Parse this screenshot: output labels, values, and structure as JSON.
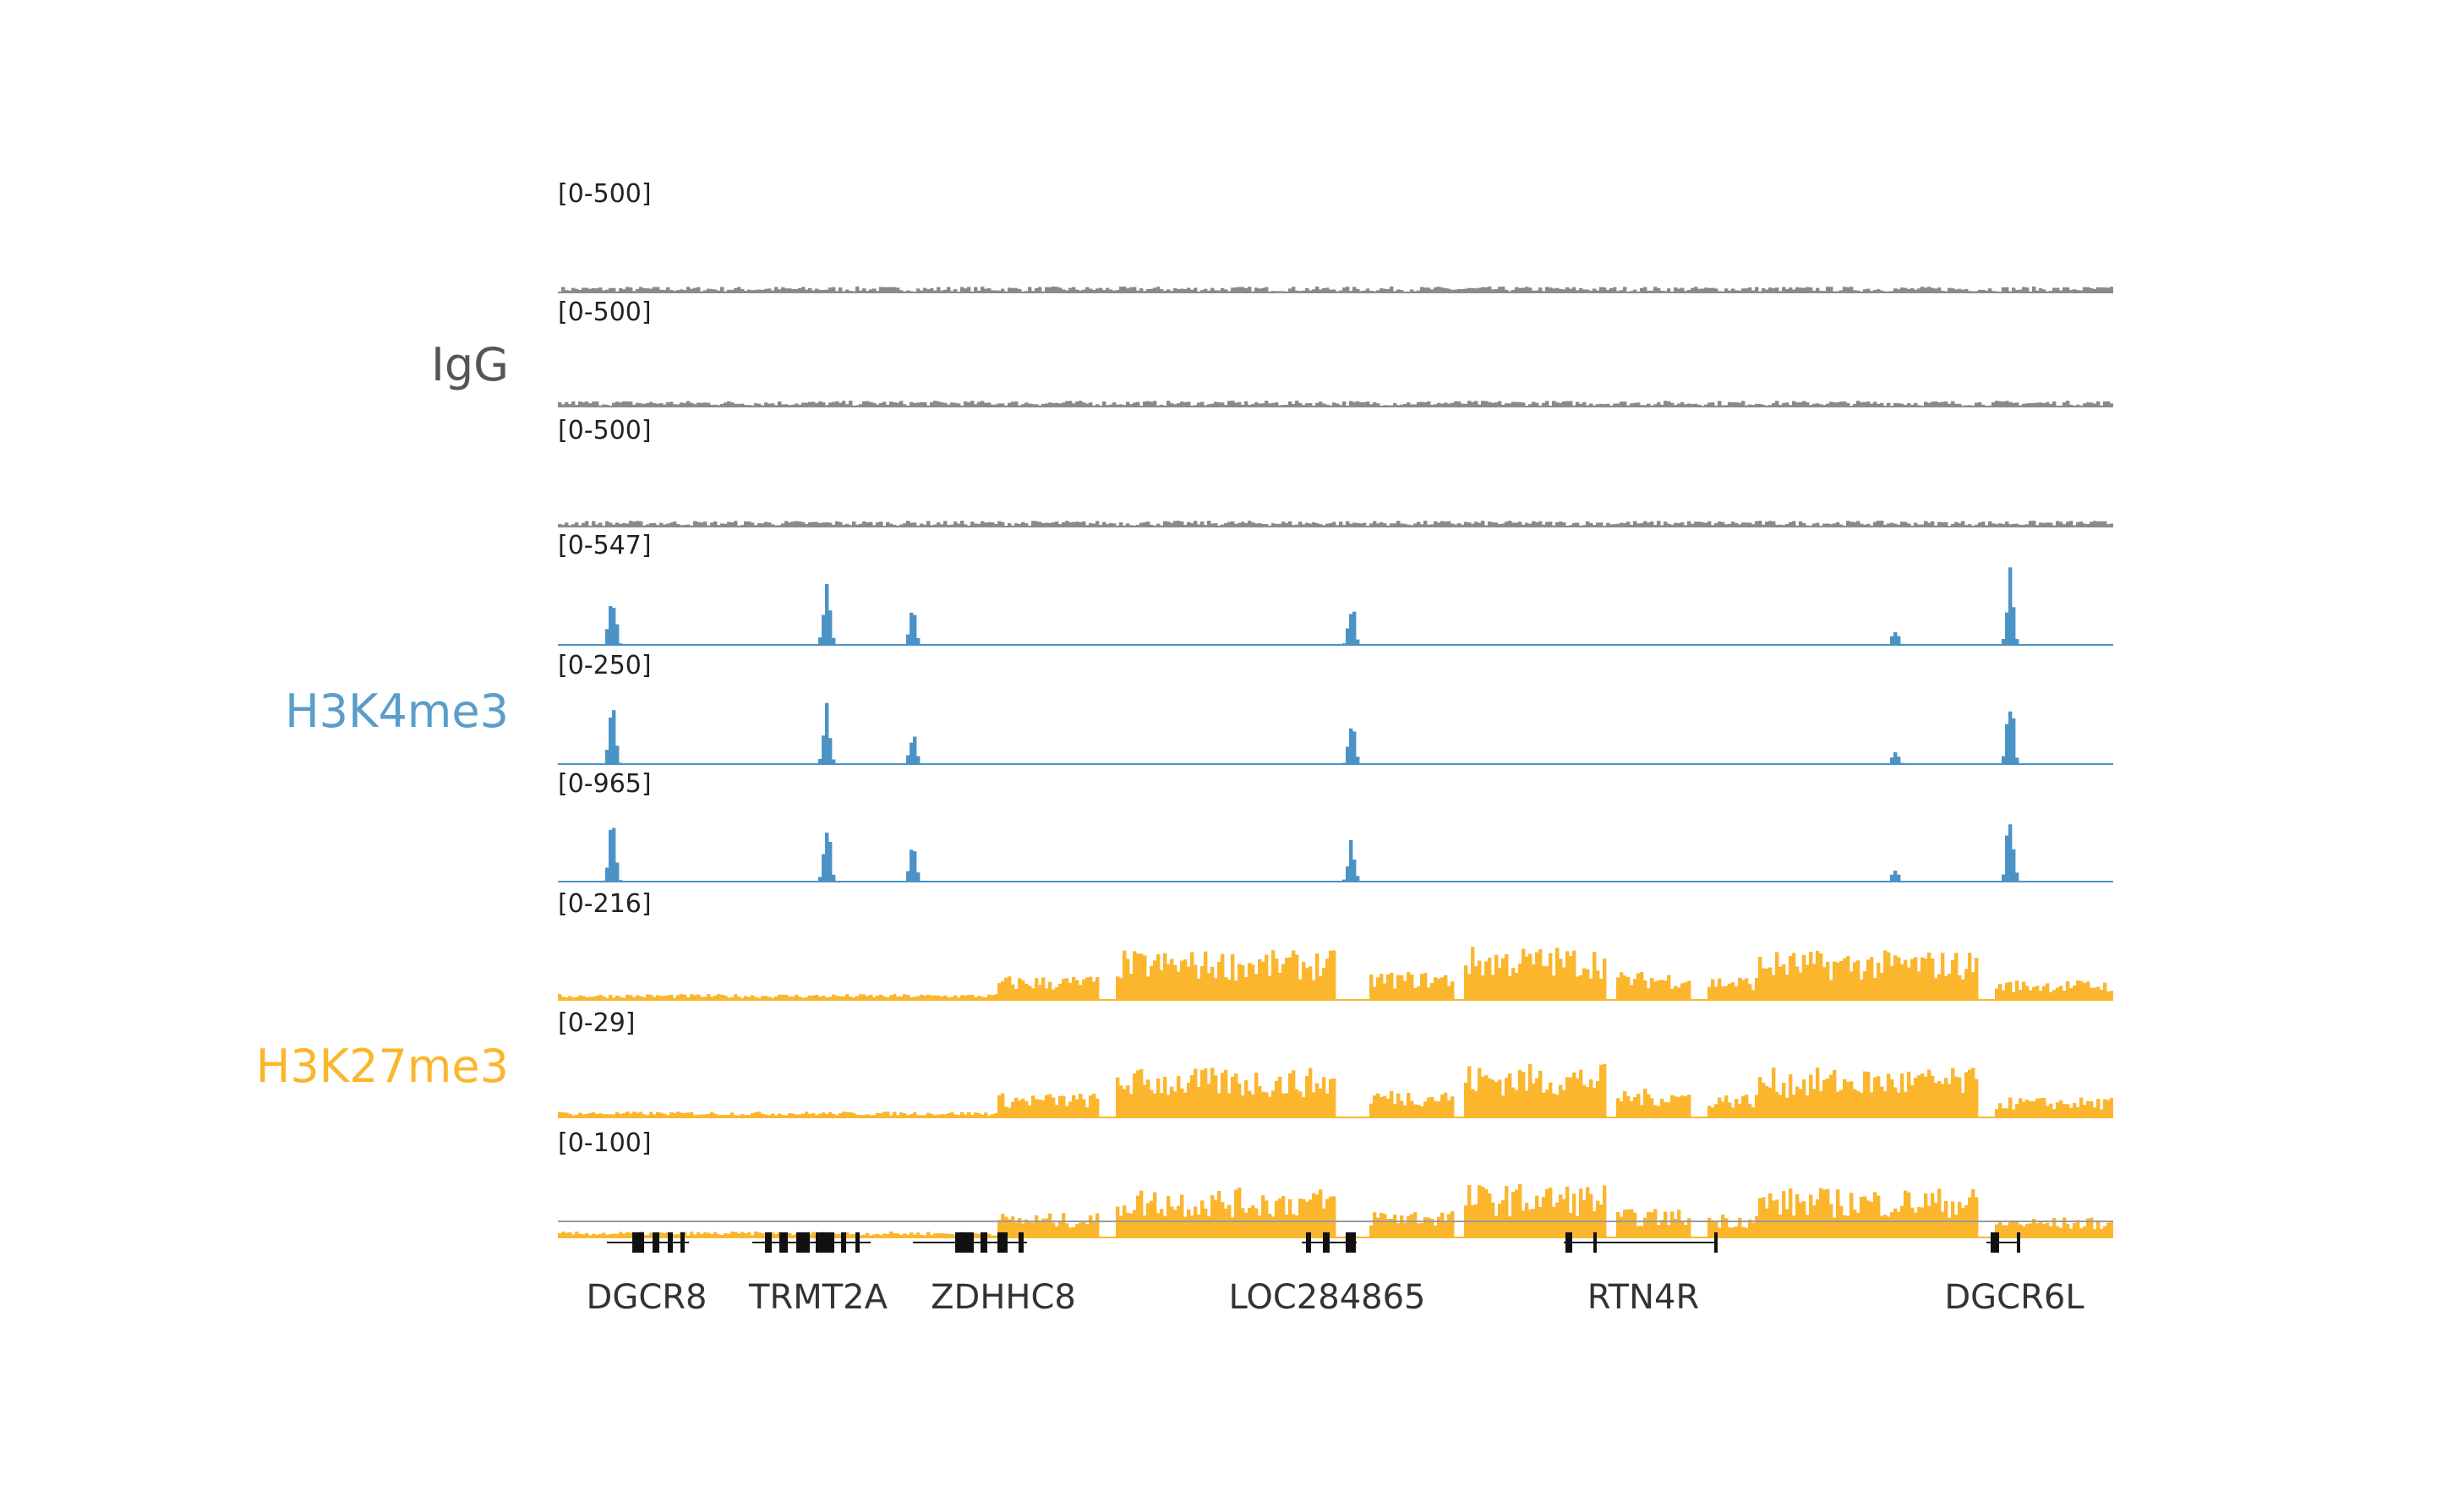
{
  "groups": [
    {
      "label": "IgG",
      "color": "#555555"
    },
    {
      "label": "H3K4me3",
      "color": "#5b9dc9"
    },
    {
      "label": "H3K27me3",
      "color": "#fbb62e"
    }
  ],
  "tracks": [
    {
      "range": "[0-500]",
      "group": 0,
      "color": "#8a8a8a"
    },
    {
      "range": "[0-500]",
      "group": 0,
      "color": "#8a8a8a"
    },
    {
      "range": "[0-500]",
      "group": 0,
      "color": "#8a8a8a"
    },
    {
      "range": "[0-547]",
      "group": 1,
      "color": "#4b93c7"
    },
    {
      "range": "[0-250]",
      "group": 1,
      "color": "#4b93c7"
    },
    {
      "range": "[0-965]",
      "group": 1,
      "color": "#4b93c7"
    },
    {
      "range": "[0-216]",
      "group": 2,
      "color": "#fbb62e"
    },
    {
      "range": "[0-29]",
      "group": 2,
      "color": "#fbb62e"
    },
    {
      "range": "[0-100]",
      "group": 2,
      "color": "#fbb62e"
    }
  ],
  "genes": [
    {
      "name": "DGCR8"
    },
    {
      "name": "TRMT2A"
    },
    {
      "name": "ZDHHC8"
    },
    {
      "name": "LOC284865"
    },
    {
      "name": "RTN4R"
    },
    {
      "name": "DGCR6L"
    }
  ]
}
